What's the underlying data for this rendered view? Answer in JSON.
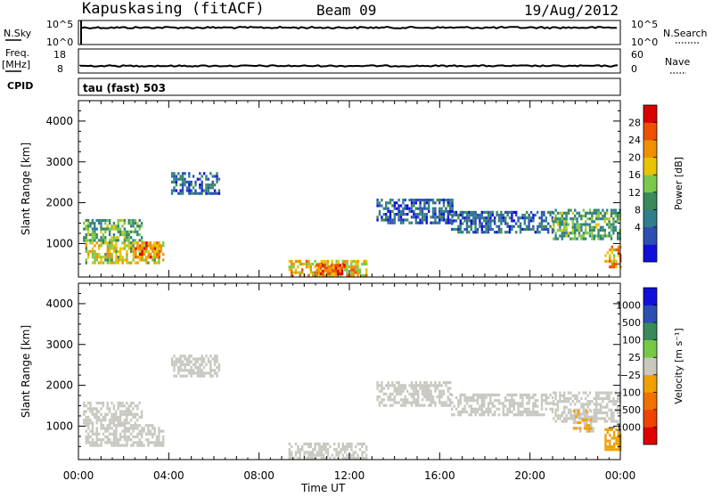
{
  "header": {
    "station": "Kapuskasing (fitACF)",
    "beam": "Beam 09",
    "date": "19/Aug/2012"
  },
  "strips": {
    "nsky_label": "N.Sky",
    "nsky_ticks": [
      "10^5",
      "10^0"
    ],
    "nsearch_label": "N.Search",
    "nsearch_ticks": [
      "10^5",
      "10^0"
    ],
    "freq_label": "Freq.",
    "freq_unit": "[MHz]",
    "freq_ticks": [
      "18",
      "8"
    ],
    "nave_label": "Nave",
    "nave_ticks": [
      "60",
      "0"
    ],
    "cpid_label": "CPID",
    "cpid_value": "tau (fast) 503"
  },
  "x_axis": {
    "ticks": [
      "00:00",
      "04:00",
      "08:00",
      "12:00",
      "16:00",
      "20:00",
      "00:00"
    ],
    "label": "Time UT"
  },
  "chart_data": [
    {
      "type": "heatmap",
      "title": "",
      "ylabel": "Slant Range [km]",
      "yticks": [
        "4000",
        "3000",
        "2000",
        "1000"
      ],
      "ylim": [
        180,
        4500
      ],
      "xlim_hours": [
        0,
        24
      ],
      "colorbar": {
        "label": "Power [dB]",
        "ticks": [
          "28",
          "24",
          "20",
          "16",
          "12",
          "8",
          "4"
        ],
        "range": [
          0,
          30
        ],
        "colors": [
          "#1010d8",
          "#2d4fb0",
          "#2e7e8e",
          "#3a8a5a",
          "#7cc84a",
          "#e8c400",
          "#f09000",
          "#ee5000",
          "#d80000"
        ]
      },
      "echo_regions": [
        {
          "t0": 0.2,
          "t1": 2.8,
          "r0": 1050,
          "r1": 1600,
          "level": 12
        },
        {
          "t0": 0.3,
          "t1": 3.8,
          "r0": 500,
          "r1": 1050,
          "level": 18
        },
        {
          "t0": 2.4,
          "t1": 3.6,
          "r0": 700,
          "r1": 1050,
          "level": 24
        },
        {
          "t0": 4.1,
          "t1": 6.2,
          "r0": 2250,
          "r1": 2750,
          "level": 6
        },
        {
          "t0": 9.3,
          "t1": 12.8,
          "r0": 250,
          "r1": 600,
          "level": 20
        },
        {
          "t0": 10.5,
          "t1": 11.8,
          "r0": 280,
          "r1": 500,
          "level": 26
        },
        {
          "t0": 13.2,
          "t1": 16.6,
          "r0": 1500,
          "r1": 2100,
          "level": 5
        },
        {
          "t0": 16.5,
          "t1": 21.0,
          "r0": 1300,
          "r1": 1800,
          "level": 6
        },
        {
          "t0": 21.0,
          "t1": 24.0,
          "r0": 1150,
          "r1": 1850,
          "level": 12
        },
        {
          "t0": 23.3,
          "t1": 24.0,
          "r0": 450,
          "r1": 950,
          "level": 22
        }
      ]
    },
    {
      "type": "heatmap",
      "title": "",
      "ylabel": "Slant Range [km]",
      "yticks": [
        "4000",
        "3000",
        "2000",
        "1000"
      ],
      "ylim": [
        180,
        4500
      ],
      "xlim_hours": [
        0,
        24
      ],
      "colorbar": {
        "label": "Velocity [m s⁻¹]",
        "ticks": [
          "1000",
          "500",
          "100",
          "25",
          "−25",
          "−100",
          "−500",
          "−1000"
        ],
        "range": [
          -1200,
          1200
        ],
        "colors": [
          "#e00000",
          "#ee4400",
          "#f07000",
          "#f0a000",
          "#c8c8c0",
          "#78c848",
          "#3a8a5a",
          "#2d4fb0",
          "#1010d8"
        ]
      },
      "echo_regions": [
        {
          "t0": 0.2,
          "t1": 2.8,
          "r0": 1050,
          "r1": 1600,
          "velocity": 0
        },
        {
          "t0": 0.3,
          "t1": 3.8,
          "r0": 500,
          "r1": 1050,
          "velocity": 60
        },
        {
          "t0": 4.1,
          "t1": 6.2,
          "r0": 2250,
          "r1": 2750,
          "velocity": 0
        },
        {
          "t0": 9.3,
          "t1": 12.8,
          "r0": 250,
          "r1": 600,
          "velocity": -80
        },
        {
          "t0": 13.2,
          "t1": 16.6,
          "r0": 1500,
          "r1": 2100,
          "velocity": 0
        },
        {
          "t0": 16.5,
          "t1": 21.0,
          "r0": 1300,
          "r1": 1800,
          "velocity": 0
        },
        {
          "t0": 21.0,
          "t1": 24.0,
          "r0": 1150,
          "r1": 1850,
          "velocity": 0
        },
        {
          "t0": 21.9,
          "t1": 22.8,
          "r0": 900,
          "r1": 1400,
          "velocity": -150
        },
        {
          "t0": 23.3,
          "t1": 24.0,
          "r0": 450,
          "r1": 950,
          "velocity": -300
        }
      ]
    }
  ]
}
